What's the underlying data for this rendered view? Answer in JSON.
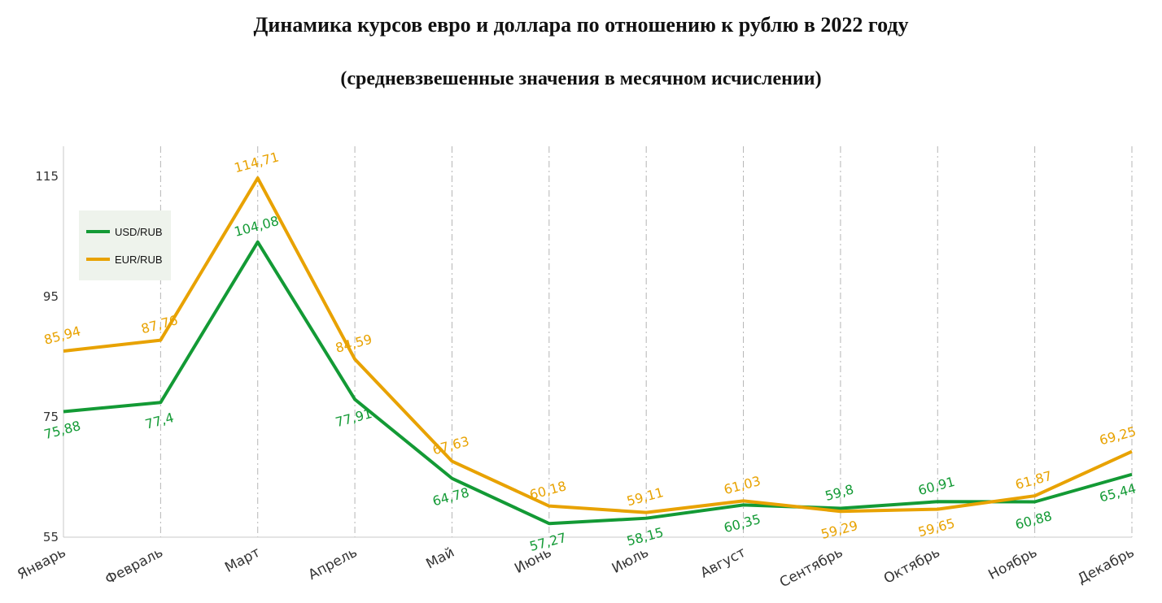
{
  "chart_data": {
    "type": "line",
    "title": "Динамика курсов евро и доллара по отношению к рублю в 2022 году",
    "subtitle": "(средневзвешенные значения в месячном исчислении)",
    "xlabel": "",
    "ylabel": "",
    "categories": [
      "Январь",
      "Февраль",
      "Март",
      "Апрель",
      "Май",
      "Июнь",
      "Июль",
      "Август",
      "Сентябрь",
      "Октябрь",
      "Ноябрь",
      "Декабрь"
    ],
    "yticks": [
      55,
      75,
      95,
      115
    ],
    "ylim": [
      55,
      120
    ],
    "grid": "vertical dashed",
    "legend_position": "top-left",
    "series": [
      {
        "name": "USD/RUB",
        "color": "#139a35",
        "values": [
          75.88,
          77.4,
          104.08,
          77.91,
          64.78,
          57.27,
          58.15,
          60.35,
          59.8,
          60.91,
          60.88,
          65.44
        ],
        "labels": [
          "75,88",
          "77,4",
          "104,08",
          "77,91",
          "64,78",
          "57,27",
          "58,15",
          "60,35",
          "59,8",
          "60,91",
          "60,88",
          "65,44"
        ]
      },
      {
        "name": "EUR/RUB",
        "color": "#e8a200",
        "values": [
          85.94,
          87.76,
          114.71,
          84.59,
          67.63,
          60.18,
          59.11,
          61.03,
          59.29,
          59.65,
          61.87,
          69.25
        ],
        "labels": [
          "85,94",
          "87,76",
          "114,71",
          "84,59",
          "67,63",
          "60,18",
          "59,11",
          "61,03",
          "59,29",
          "59,65",
          "61,87",
          "69,25"
        ]
      }
    ]
  }
}
